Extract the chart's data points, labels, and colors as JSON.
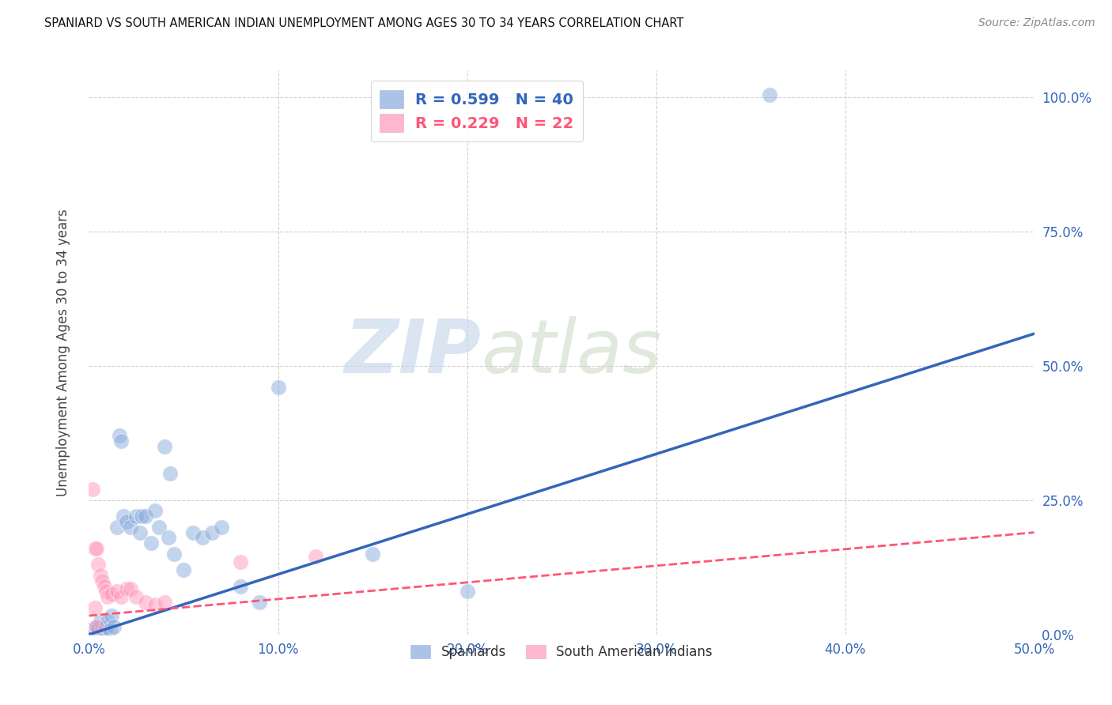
{
  "title": "SPANIARD VS SOUTH AMERICAN INDIAN UNEMPLOYMENT AMONG AGES 30 TO 34 YEARS CORRELATION CHART",
  "source": "Source: ZipAtlas.com",
  "ylabel_label": "Unemployment Among Ages 30 to 34 years",
  "watermark_zip": "ZIP",
  "watermark_atlas": "atlas",
  "legend_blue_r": "R = 0.599",
  "legend_blue_n": "N = 40",
  "legend_pink_r": "R = 0.229",
  "legend_pink_n": "N = 22",
  "legend_label_blue": "Spaniards",
  "legend_label_pink": "South American Indians",
  "blue_color": "#88AADD",
  "pink_color": "#FF99BB",
  "blue_line_color": "#3366BB",
  "pink_line_color": "#FF5577",
  "blue_scatter": [
    [
      0.2,
      1.0
    ],
    [
      0.3,
      0.5
    ],
    [
      0.4,
      1.5
    ],
    [
      0.5,
      1.0
    ],
    [
      0.6,
      2.5
    ],
    [
      0.7,
      0.8
    ],
    [
      0.8,
      0.5
    ],
    [
      0.9,
      1.5
    ],
    [
      1.0,
      2.5
    ],
    [
      1.1,
      0.8
    ],
    [
      1.2,
      3.5
    ],
    [
      1.3,
      1.5
    ],
    [
      1.5,
      20.0
    ],
    [
      1.6,
      37.0
    ],
    [
      1.7,
      36.0
    ],
    [
      1.8,
      22.0
    ],
    [
      2.0,
      21.0
    ],
    [
      2.2,
      20.0
    ],
    [
      2.5,
      22.0
    ],
    [
      2.7,
      19.0
    ],
    [
      2.8,
      22.0
    ],
    [
      3.0,
      22.0
    ],
    [
      3.3,
      17.0
    ],
    [
      3.5,
      23.0
    ],
    [
      3.7,
      20.0
    ],
    [
      4.0,
      35.0
    ],
    [
      4.2,
      18.0
    ],
    [
      4.3,
      30.0
    ],
    [
      4.5,
      15.0
    ],
    [
      5.0,
      12.0
    ],
    [
      5.5,
      19.0
    ],
    [
      6.0,
      18.0
    ],
    [
      6.5,
      19.0
    ],
    [
      7.0,
      20.0
    ],
    [
      8.0,
      9.0
    ],
    [
      9.0,
      6.0
    ],
    [
      10.0,
      46.0
    ],
    [
      15.0,
      15.0
    ],
    [
      20.0,
      8.0
    ],
    [
      36.0,
      100.5
    ]
  ],
  "pink_scatter": [
    [
      0.2,
      27.0
    ],
    [
      0.3,
      16.0
    ],
    [
      0.4,
      16.0
    ],
    [
      0.5,
      13.0
    ],
    [
      0.6,
      11.0
    ],
    [
      0.7,
      10.0
    ],
    [
      0.8,
      9.0
    ],
    [
      0.9,
      8.0
    ],
    [
      1.0,
      7.0
    ],
    [
      1.2,
      7.5
    ],
    [
      1.5,
      8.0
    ],
    [
      1.7,
      7.0
    ],
    [
      2.0,
      8.5
    ],
    [
      2.2,
      8.5
    ],
    [
      2.5,
      7.0
    ],
    [
      3.0,
      6.0
    ],
    [
      3.5,
      5.5
    ],
    [
      4.0,
      6.0
    ],
    [
      8.0,
      13.5
    ],
    [
      12.0,
      14.5
    ],
    [
      0.3,
      5.0
    ],
    [
      0.4,
      1.5
    ]
  ],
  "xlim": [
    0.0,
    50.0
  ],
  "ylim": [
    0.0,
    105.0
  ],
  "xtick_vals": [
    0.0,
    10.0,
    20.0,
    30.0,
    40.0,
    50.0
  ],
  "xtick_labels": [
    "0.0%",
    "10.0%",
    "20.0%",
    "30.0%",
    "40.0%",
    "50.0%"
  ],
  "ytick_vals": [
    0.0,
    25.0,
    50.0,
    75.0,
    100.0
  ],
  "ytick_labels": [
    "0.0%",
    "25.0%",
    "50.0%",
    "75.0%",
    "100.0%"
  ],
  "blue_trend_x": [
    0.0,
    50.0
  ],
  "blue_trend_y": [
    0.0,
    56.0
  ],
  "pink_trend_x": [
    0.0,
    50.0
  ],
  "pink_trend_y": [
    3.5,
    19.0
  ],
  "background_color": "#ffffff",
  "grid_color": "#cccccc",
  "tick_color": "#3366BB"
}
